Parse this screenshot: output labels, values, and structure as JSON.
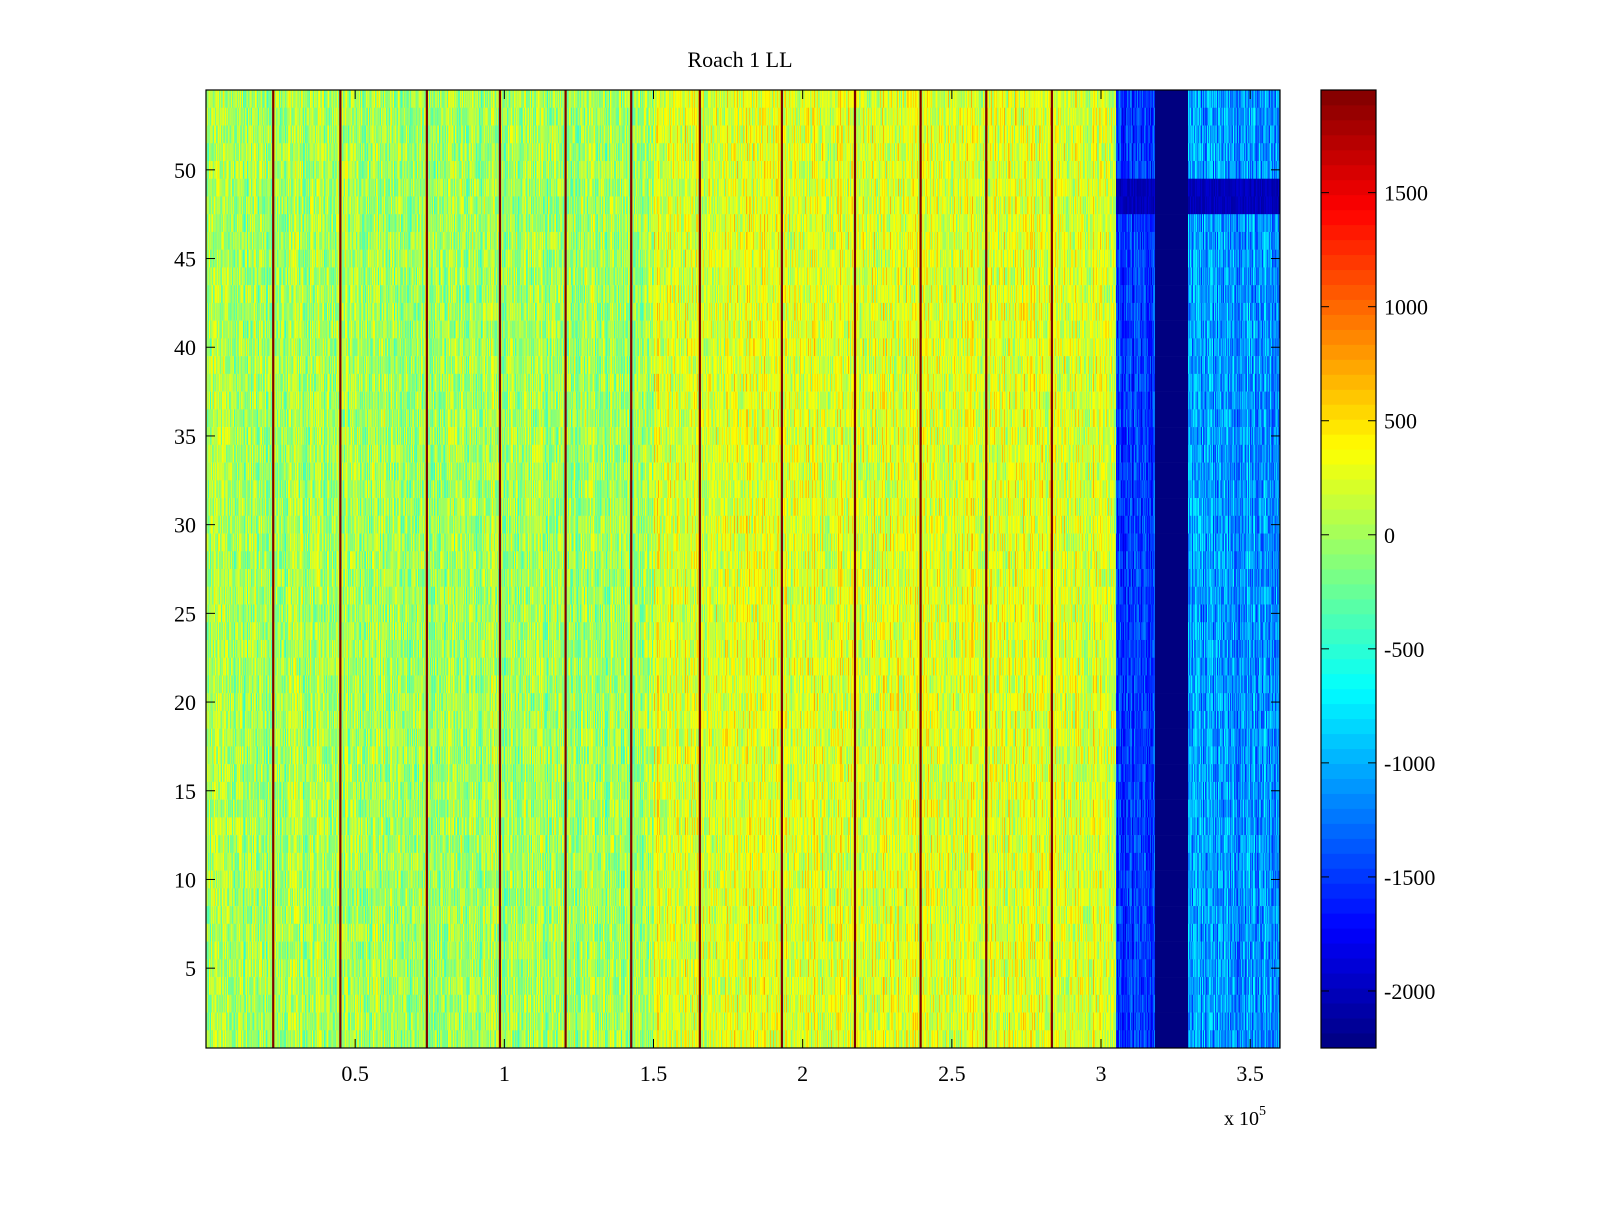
{
  "chart_data": {
    "type": "heatmap",
    "title": "Roach 1 LL",
    "xlabel": "",
    "ylabel": "",
    "x_exponent_label": {
      "base": "x 10",
      "exponent": "5"
    },
    "xlim": [
      0,
      3.6
    ],
    "ylim": [
      0.5,
      54.5
    ],
    "x_ticks": [
      0.5,
      1,
      1.5,
      2,
      2.5,
      3,
      3.5
    ],
    "x_tick_labels": [
      "0.5",
      "1",
      "1.5",
      "2",
      "2.5",
      "3",
      "3.5"
    ],
    "y_ticks": [
      5,
      10,
      15,
      20,
      25,
      30,
      35,
      40,
      45,
      50
    ],
    "y_tick_labels": [
      "5",
      "10",
      "15",
      "20",
      "25",
      "30",
      "35",
      "40",
      "45",
      "50"
    ],
    "rows": 54,
    "colorbar": {
      "colormap": "jet",
      "clim": [
        -2250,
        1950
      ],
      "ticks": [
        -2000,
        -1500,
        -1000,
        -500,
        0,
        500,
        1000,
        1500
      ],
      "tick_labels": [
        "-2000",
        "-1500",
        "-1000",
        "-500",
        "0",
        "500",
        "1000",
        "1500"
      ]
    },
    "regions": [
      {
        "x_range": [
          0,
          1.5
        ],
        "typical_value": 0,
        "spread": 450,
        "note": "noisy green/yellow background"
      },
      {
        "x_range": [
          1.5,
          3.05
        ],
        "typical_value": 250,
        "spread": 450,
        "note": "slightly warmer yellow/orange background"
      },
      {
        "x_range": [
          3.05,
          3.18
        ],
        "typical_value": -1500,
        "spread": 350
      },
      {
        "x_range": [
          3.18,
          3.29
        ],
        "typical_value": -2250,
        "spread": 0
      },
      {
        "x_range": [
          3.29,
          3.6
        ],
        "typical_value": -1100,
        "spread": 450
      }
    ],
    "vertical_line_positions": [
      0.225,
      0.45,
      0.74,
      0.985,
      1.205,
      1.425,
      1.655,
      1.93,
      2.175,
      2.395,
      2.615,
      2.835
    ],
    "vertical_line_value": 1950,
    "dark_row_band": {
      "rows": [
        48,
        49
      ],
      "x_range": [
        3.05,
        3.6
      ],
      "value": -2000
    }
  }
}
